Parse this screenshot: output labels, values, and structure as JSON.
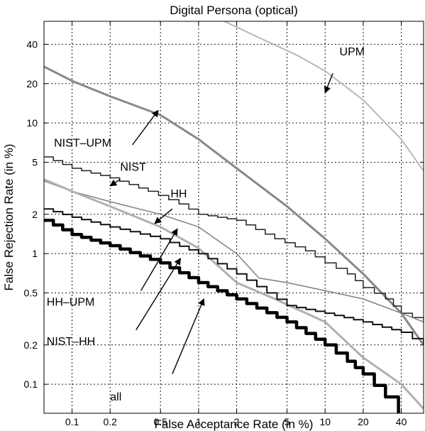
{
  "chart_data": {
    "type": "line",
    "title": "Digital Persona (optical)",
    "xlabel": "False Acceptance Rate (in %)",
    "ylabel": "False  Rejection Rate (in %)",
    "x_scale": "log",
    "y_scale": "log",
    "xlim": [
      0.06,
      60
    ],
    "ylim": [
      0.06,
      60
    ],
    "grid": true,
    "x_ticks": [
      {
        "value": 0.1,
        "label": "0.1"
      },
      {
        "value": 0.2,
        "label": "0.2"
      },
      {
        "value": 0.5,
        "label": "0.5"
      },
      {
        "value": 1,
        "label": "1"
      },
      {
        "value": 2,
        "label": "2"
      },
      {
        "value": 5,
        "label": "5"
      },
      {
        "value": 10,
        "label": "10"
      },
      {
        "value": 20,
        "label": "20"
      },
      {
        "value": 40,
        "label": "40"
      }
    ],
    "y_ticks": [
      {
        "value": 0.1,
        "label": "0.1"
      },
      {
        "value": 0.2,
        "label": "0.2"
      },
      {
        "value": 0.5,
        "label": "0.5"
      },
      {
        "value": 1,
        "label": "1"
      },
      {
        "value": 2,
        "label": "2"
      },
      {
        "value": 5,
        "label": "5"
      },
      {
        "value": 10,
        "label": "10"
      },
      {
        "value": 20,
        "label": "20"
      },
      {
        "value": 40,
        "label": "40"
      }
    ],
    "series": [
      {
        "name": "UPM",
        "color": "#b8b8b8",
        "width": 2,
        "step": false,
        "x": [
          1.6,
          3,
          6,
          10,
          20,
          40,
          60
        ],
        "y": [
          60,
          45,
          33,
          25,
          15,
          7.5,
          4.3
        ]
      },
      {
        "name": "NIST–UPM",
        "color": "#888888",
        "width": 3,
        "step": false,
        "x": [
          0.06,
          0.1,
          0.2,
          0.5,
          1,
          2,
          5,
          10,
          20,
          40,
          60
        ],
        "y": [
          27,
          21,
          16,
          11.5,
          7.5,
          4.5,
          2.3,
          1.3,
          0.7,
          0.35,
          0.2
        ]
      },
      {
        "name": "NIST",
        "color": "#222222",
        "width": 1.5,
        "step": true,
        "x": [
          0.06,
          0.1,
          0.2,
          0.4,
          0.7,
          1,
          2,
          4,
          7,
          10,
          15,
          20,
          30,
          40,
          60
        ],
        "y": [
          5.5,
          4.5,
          3.8,
          3,
          2.4,
          2,
          1.8,
          1.3,
          1.05,
          0.85,
          0.7,
          0.55,
          0.45,
          0.35,
          0.3
        ]
      },
      {
        "name": "HH",
        "color": "#808080",
        "width": 1.5,
        "step": false,
        "x": [
          0.06,
          0.1,
          0.2,
          0.5,
          1,
          2,
          3,
          5,
          10,
          20,
          40,
          60
        ],
        "y": [
          3.6,
          3,
          2.5,
          2,
          1.6,
          1,
          0.65,
          0.6,
          0.52,
          0.45,
          0.35,
          0.3
        ]
      },
      {
        "name": "HH–UPM",
        "color": "#b0b0b0",
        "width": 3,
        "step": false,
        "x": [
          0.06,
          0.1,
          0.2,
          0.5,
          1,
          2,
          4,
          10,
          20,
          40,
          60
        ],
        "y": [
          3.7,
          3,
          2.3,
          1.6,
          1.1,
          0.6,
          0.45,
          0.3,
          0.16,
          0.1,
          0.065
        ]
      },
      {
        "name": "NIST–HH",
        "color": "#111111",
        "width": 2,
        "step": true,
        "x": [
          0.06,
          0.1,
          0.2,
          0.5,
          1,
          2,
          5,
          10,
          20,
          40,
          60
        ],
        "y": [
          2.2,
          1.9,
          1.6,
          1.3,
          1,
          0.7,
          0.4,
          0.35,
          0.3,
          0.25,
          0.2
        ]
      },
      {
        "name": "all",
        "color": "#000000",
        "width": 4.5,
        "step": true,
        "x": [
          0.06,
          0.1,
          0.2,
          0.5,
          1,
          2,
          5,
          10,
          15,
          20,
          30,
          38
        ],
        "y": [
          1.8,
          1.4,
          1.15,
          0.85,
          0.6,
          0.45,
          0.3,
          0.2,
          0.15,
          0.12,
          0.08,
          0.06
        ]
      }
    ],
    "annotations": [
      {
        "text": "UPM",
        "text_x": 13,
        "text_y": 33,
        "anchor": "start",
        "arrow_from": [
          11.5,
          24
        ],
        "arrow_to": [
          10,
          17
        ]
      },
      {
        "text": "NIST–UPM",
        "text_x": 0.072,
        "text_y": 6.6,
        "anchor": "start",
        "arrow_from": [
          0.3,
          6.8
        ],
        "arrow_to": [
          0.48,
          12.5
        ]
      },
      {
        "text": "NIST",
        "text_x": 0.24,
        "text_y": 4.3,
        "anchor": "start",
        "arrow_from": [
          0.24,
          3.7
        ],
        "arrow_to": [
          0.2,
          3.3
        ]
      },
      {
        "text": "HH",
        "text_x": 0.6,
        "text_y": 2.7,
        "anchor": "start",
        "arrow_from": [
          0.62,
          2.2
        ],
        "arrow_to": [
          0.45,
          1.7
        ]
      },
      {
        "text": "HH–UPM",
        "text_x": 0.063,
        "text_y": 0.4,
        "anchor": "start",
        "arrow_from": [
          0.35,
          0.52
        ],
        "arrow_to": [
          0.68,
          1.55
        ]
      },
      {
        "text": "NIST–HH",
        "text_x": 0.063,
        "text_y": 0.2,
        "anchor": "start",
        "arrow_from": [
          0.32,
          0.26
        ],
        "arrow_to": [
          0.72,
          0.92
        ]
      },
      {
        "text": "all",
        "text_x": 0.2,
        "text_y": 0.075,
        "anchor": "start",
        "arrow_from": [
          0.62,
          0.12
        ],
        "arrow_to": [
          1.1,
          0.45
        ]
      }
    ]
  }
}
